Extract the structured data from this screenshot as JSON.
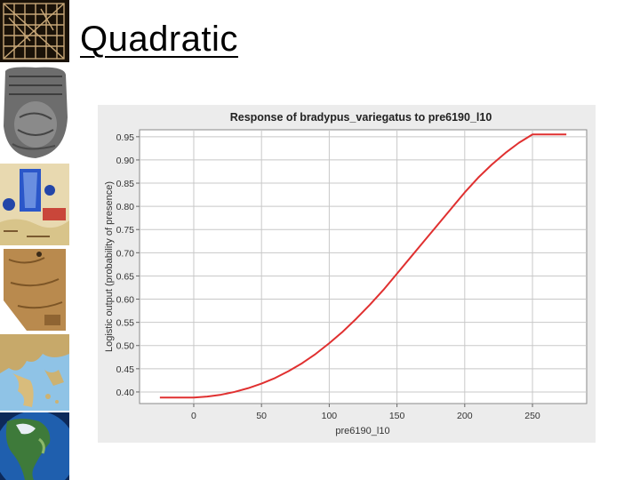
{
  "slide": {
    "title": "Quadratic"
  },
  "thumbnails": [
    {
      "name": "grid-pattern-image"
    },
    {
      "name": "clay-tablet-image"
    },
    {
      "name": "illustrated-map-image"
    },
    {
      "name": "parchment-map-image"
    },
    {
      "name": "greece-relief-map-image"
    },
    {
      "name": "north-america-globe-image"
    }
  ],
  "chart_data": {
    "type": "line",
    "title": "Response of bradypus_variegatus to pre6190_l10",
    "xlabel": "pre6190_l10",
    "ylabel": "Logistic output (probability of presence)",
    "xlim": [
      -40,
      290
    ],
    "ylim": [
      0.375,
      0.965
    ],
    "xticks": [
      0,
      50,
      100,
      150,
      200,
      250
    ],
    "yticks": [
      0.4,
      0.45,
      0.5,
      0.55,
      0.6,
      0.65,
      0.7,
      0.75,
      0.8,
      0.85,
      0.9,
      0.95
    ],
    "ytick_labels": [
      "0.40",
      "0.45",
      "0.50",
      "0.55",
      "0.60",
      "0.65",
      "0.70",
      "0.75",
      "0.80",
      "0.85",
      "0.90",
      "0.95"
    ],
    "grid": true,
    "series": [
      {
        "color": "#e03030",
        "x": [
          -25,
          0,
          10,
          20,
          30,
          40,
          50,
          60,
          70,
          80,
          90,
          100,
          110,
          120,
          130,
          140,
          150,
          160,
          170,
          180,
          190,
          200,
          210,
          220,
          230,
          240,
          250,
          275
        ],
        "y": [
          0.388,
          0.388,
          0.39,
          0.394,
          0.4,
          0.408,
          0.418,
          0.43,
          0.445,
          0.462,
          0.482,
          0.505,
          0.53,
          0.558,
          0.588,
          0.62,
          0.655,
          0.69,
          0.725,
          0.76,
          0.795,
          0.83,
          0.862,
          0.89,
          0.915,
          0.937,
          0.955,
          0.955
        ]
      }
    ]
  }
}
